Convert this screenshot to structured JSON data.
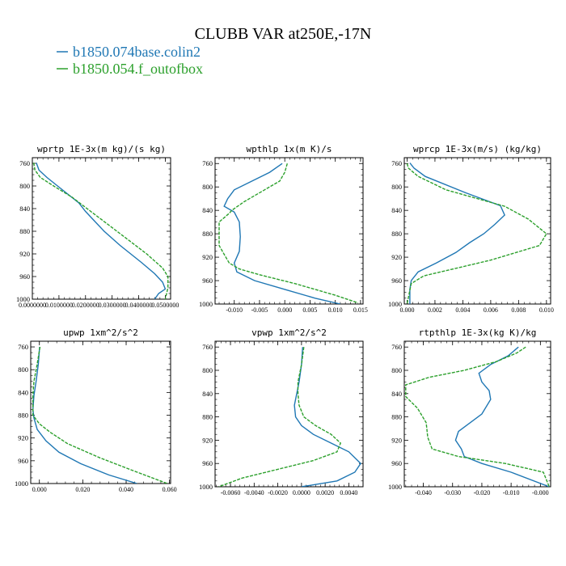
{
  "figure": {
    "title": "CLUBB VAR at250E,-17N",
    "legend": [
      {
        "label": "b1850.074base.colin2",
        "color": "#1f77b4",
        "style": "solid"
      },
      {
        "label": "b1850.054.f_outofbox",
        "color": "#2ca02c",
        "style": "dashed"
      }
    ]
  },
  "chart_data": [
    {
      "type": "line",
      "title": "wprtp  1E-3x(m kg)/(s kg)",
      "xlim": [
        0,
        0.052
      ],
      "xticks": [
        0,
        0.01,
        0.02,
        0.03,
        0.04,
        0.05
      ],
      "xtick_labels": [
        "0.0000000",
        "0.0100000",
        "0.0200000",
        "0.0300000",
        "0.0400000",
        "0.0500000"
      ],
      "ylim": [
        1000,
        750
      ],
      "yticks": [
        760,
        800,
        840,
        880,
        920,
        960,
        1000
      ],
      "series": [
        {
          "name": "b1850.074base.colin2",
          "color": "#1f77b4",
          "style": "solid",
          "x": [
            0.0015,
            0.0025,
            0.0055,
            0.0095,
            0.0135,
            0.0175,
            0.02,
            0.023,
            0.027,
            0.033,
            0.041,
            0.046,
            0.049,
            0.05,
            0.0475,
            0.046
          ],
          "y": [
            759,
            772,
            785,
            800,
            815,
            830,
            845,
            860,
            880,
            905,
            935,
            955,
            970,
            982,
            990,
            1000
          ]
        },
        {
          "name": "b1850.054.f_outofbox",
          "color": "#2ca02c",
          "style": "dashed",
          "x": [
            0.0005,
            0.001,
            0.003,
            0.008,
            0.015,
            0.022,
            0.029,
            0.036,
            0.043,
            0.049,
            0.051,
            0.051,
            0.05
          ],
          "y": [
            759,
            772,
            785,
            800,
            820,
            845,
            870,
            895,
            920,
            945,
            960,
            980,
            1000
          ]
        }
      ]
    },
    {
      "type": "line",
      "title": "wpthlp  1x(m K)/s",
      "xlim": [
        -0.0138,
        0.0155
      ],
      "xticks": [
        -0.01,
        -0.005,
        0,
        0.005,
        0.01,
        0.015
      ],
      "xtick_labels": [
        "-0.010",
        "-0.005",
        "0.000",
        "0.005",
        "0.010",
        "0.015"
      ],
      "ylim": [
        1000,
        750
      ],
      "yticks": [
        760,
        800,
        840,
        880,
        920,
        960,
        1000
      ],
      "series": [
        {
          "name": "b1850.074base.colin2",
          "color": "#1f77b4",
          "style": "solid",
          "x": [
            -0.0005,
            -0.003,
            -0.01,
            -0.0113,
            -0.012,
            -0.01,
            -0.009,
            -0.0088,
            -0.009,
            -0.01,
            -0.0095,
            -0.006,
            0.0,
            0.006,
            0.011
          ],
          "y": [
            760,
            775,
            805,
            820,
            833,
            843,
            860,
            885,
            910,
            930,
            945,
            960,
            975,
            990,
            1000
          ]
        },
        {
          "name": "b1850.054.f_outofbox",
          "color": "#2ca02c",
          "style": "dashed",
          "x": [
            0.0005,
            0.0,
            -0.001,
            -0.004,
            -0.008,
            -0.0105,
            -0.011,
            -0.013,
            -0.013,
            -0.013,
            -0.012,
            -0.011,
            -0.009,
            -0.005,
            0.002,
            0.01,
            0.0145
          ],
          "y": [
            760,
            775,
            790,
            805,
            825,
            840,
            845,
            860,
            880,
            900,
            915,
            930,
            940,
            950,
            965,
            985,
            998
          ]
        }
      ]
    },
    {
      "type": "line",
      "title": "wprcp  1E-3x(m/s) (kg/kg)",
      "xlim": [
        -0.0002,
        0.0103
      ],
      "xticks": [
        0,
        0.002,
        0.004,
        0.006,
        0.008,
        0.01
      ],
      "xtick_labels": [
        "0.000",
        "0.002",
        "0.004",
        "0.006",
        "0.008",
        "0.010"
      ],
      "ylim": [
        1000,
        750
      ],
      "yticks": [
        760,
        800,
        840,
        880,
        920,
        960,
        1000
      ],
      "series": [
        {
          "name": "b1850.074base.colin2",
          "color": "#1f77b4",
          "style": "solid",
          "x": [
            0.0002,
            0.0005,
            0.0013,
            0.0042,
            0.0067,
            0.007,
            0.0063,
            0.0055,
            0.0045,
            0.0035,
            0.0021,
            0.0008,
            0.0003,
            0.0002,
            0.0002
          ],
          "y": [
            759,
            768,
            782,
            810,
            832,
            848,
            864,
            880,
            895,
            912,
            930,
            945,
            960,
            975,
            1000
          ]
        },
        {
          "name": "b1850.054.f_outofbox",
          "color": "#2ca02c",
          "style": "dashed",
          "x": [
            0.0,
            0.0001,
            0.0008,
            0.0028,
            0.007,
            0.0087,
            0.01,
            0.0095,
            0.006,
            0.0012,
            0.0003,
            0.0
          ],
          "y": [
            760,
            768,
            782,
            805,
            833,
            855,
            880,
            900,
            925,
            952,
            965,
            1000
          ]
        }
      ]
    },
    {
      "type": "line",
      "title": "upwp  1xm^2/s^2",
      "xlim": [
        -0.004,
        0.0605
      ],
      "xticks": [
        0,
        0.02,
        0.04,
        0.06
      ],
      "xtick_labels": [
        "0.000",
        "0.020",
        "0.040",
        "0.060"
      ],
      "ylim": [
        1000,
        750
      ],
      "yticks": [
        760,
        800,
        840,
        880,
        920,
        960,
        1000
      ],
      "series": [
        {
          "name": "b1850.074base.colin2",
          "color": "#1f77b4",
          "style": "solid",
          "x": [
            0.0001,
            -0.0005,
            -0.0015,
            -0.0025,
            -0.003,
            -0.0025,
            -0.001,
            0.003,
            0.009,
            0.019,
            0.032,
            0.045
          ],
          "y": [
            760,
            790,
            820,
            845,
            870,
            885,
            905,
            925,
            945,
            965,
            985,
            1000
          ]
        },
        {
          "name": "b1850.054.f_outofbox",
          "color": "#2ca02c",
          "style": "dashed",
          "x": [
            0.0003,
            -0.001,
            -0.0025,
            -0.003,
            -0.003,
            -0.003,
            0.0,
            0.005,
            0.013,
            0.028,
            0.045,
            0.059
          ],
          "y": [
            760,
            790,
            820,
            845,
            870,
            880,
            895,
            910,
            930,
            955,
            980,
            1000
          ]
        }
      ]
    },
    {
      "type": "line",
      "title": "vpwp  1xm^2/s^2",
      "xlim": [
        -0.0073,
        0.0052
      ],
      "xticks": [
        -0.006,
        -0.004,
        -0.002,
        0,
        0.002,
        0.004
      ],
      "xtick_labels": [
        "-0.0060",
        "-0.0040",
        "-0.0020",
        "0.0000",
        "0.0020",
        "0.0040"
      ],
      "ylim": [
        1000,
        750
      ],
      "yticks": [
        760,
        800,
        840,
        880,
        920,
        960,
        1000
      ],
      "series": [
        {
          "name": "b1850.074base.colin2",
          "color": "#1f77b4",
          "style": "solid",
          "x": [
            0.0001,
            0.0,
            -0.0002,
            -0.0004,
            -0.0006,
            -0.0005,
            0.0,
            0.001,
            0.0025,
            0.004,
            0.005,
            0.0045,
            0.003,
            0.0
          ],
          "y": [
            760,
            790,
            820,
            840,
            860,
            880,
            895,
            910,
            925,
            940,
            960,
            975,
            990,
            1000
          ]
        },
        {
          "name": "b1850.054.f_outofbox",
          "color": "#2ca02c",
          "style": "dashed",
          "x": [
            0.0002,
            0.0,
            -0.0003,
            -0.0003,
            -0.0002,
            0.0002,
            0.0012,
            0.0025,
            0.0033,
            0.003,
            0.001,
            -0.002,
            -0.005,
            -0.007
          ],
          "y": [
            760,
            790,
            820,
            840,
            860,
            880,
            895,
            910,
            925,
            940,
            955,
            970,
            985,
            1000
          ]
        }
      ]
    },
    {
      "type": "line",
      "title": "rtpthlp  1E-3x(kg K)/kg",
      "xlim": [
        -0.0465,
        0.0035
      ],
      "xticks": [
        -0.04,
        -0.03,
        -0.02,
        -0.01,
        0
      ],
      "xtick_labels": [
        "-0.040",
        "-0.030",
        "-0.020",
        "-0.010",
        "-0.000"
      ],
      "ylim": [
        1000,
        750
      ],
      "yticks": [
        760,
        800,
        840,
        880,
        920,
        960,
        1000
      ],
      "series": [
        {
          "name": "b1850.074base.colin2",
          "color": "#1f77b4",
          "style": "solid",
          "x": [
            -0.0075,
            -0.011,
            -0.017,
            -0.021,
            -0.02,
            -0.0175,
            -0.017,
            -0.02,
            -0.028,
            -0.029,
            -0.027,
            -0.026,
            -0.02,
            -0.01,
            0.003
          ],
          "y": [
            760,
            775,
            790,
            805,
            820,
            835,
            850,
            875,
            905,
            920,
            935,
            948,
            960,
            975,
            1000
          ]
        },
        {
          "name": "b1850.054.f_outofbox",
          "color": "#2ca02c",
          "style": "dashed",
          "x": [
            -0.005,
            -0.008,
            -0.015,
            -0.026,
            -0.038,
            -0.046,
            -0.046,
            -0.042,
            -0.039,
            -0.0385,
            -0.037,
            -0.028,
            -0.012,
            0.001,
            0.003
          ],
          "y": [
            760,
            770,
            785,
            800,
            812,
            825,
            845,
            865,
            890,
            915,
            935,
            948,
            960,
            975,
            1000
          ]
        }
      ]
    }
  ]
}
